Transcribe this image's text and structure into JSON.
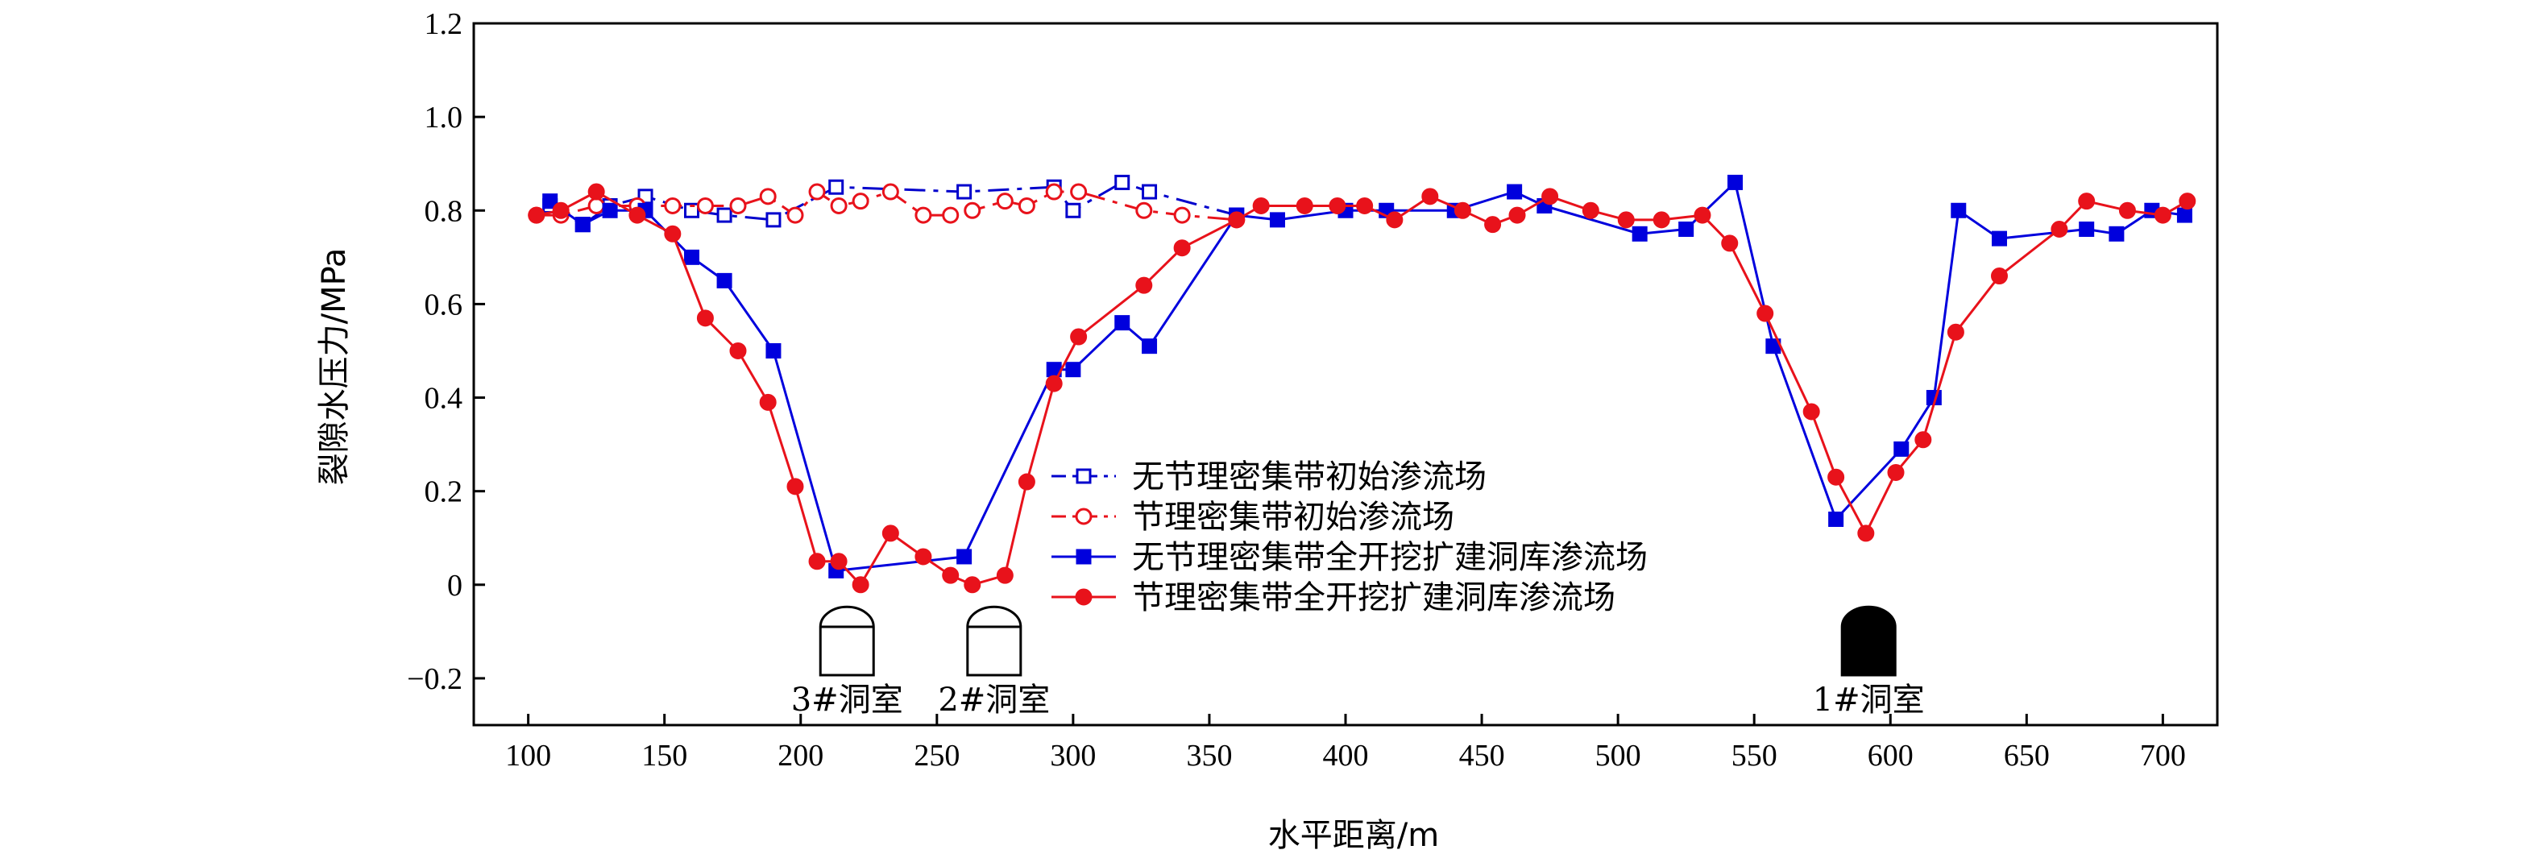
{
  "chart_data": {
    "type": "line",
    "title": "",
    "xlabel": "水平距离/m",
    "ylabel": "裂隙水压力/MPa",
    "xlim": [
      80,
      720
    ],
    "ylim": [
      -0.3,
      1.2
    ],
    "xticks": [
      100,
      150,
      200,
      250,
      300,
      350,
      400,
      450,
      500,
      550,
      600,
      650,
      700
    ],
    "xtick_labels": [
      "100",
      "150",
      "200",
      "250",
      "300",
      "350",
      "400",
      "450",
      "500",
      "550",
      "600",
      "650",
      "700"
    ],
    "yticks": [
      -0.2,
      0,
      0.2,
      0.4,
      0.6,
      0.8,
      1.0,
      1.2
    ],
    "ytick_labels": [
      "−0.2",
      "0",
      "0.2",
      "0.4",
      "0.6",
      "0.8",
      "1.0",
      "1.2"
    ],
    "legend_position": "center",
    "series": [
      {
        "name": "无节理密集带初始渗流场",
        "color": "#0000cc",
        "line_style": "dashdot",
        "marker": "square-open",
        "x": [
          108,
          120,
          130,
          143,
          160,
          172,
          190,
          213,
          260,
          293,
          300,
          318,
          328,
          360
        ],
        "y": [
          0.81,
          0.77,
          0.81,
          0.83,
          0.8,
          0.79,
          0.78,
          0.85,
          0.84,
          0.85,
          0.8,
          0.86,
          0.84,
          0.79
        ]
      },
      {
        "name": "节理密集带初始渗流场",
        "color": "#e8121b",
        "line_style": "dashdot",
        "marker": "circle-open",
        "x": [
          103,
          112,
          125,
          140,
          153,
          165,
          177,
          188,
          198,
          206,
          214,
          222,
          233,
          245,
          255,
          263,
          275,
          283,
          293,
          302,
          326,
          340,
          360
        ],
        "y": [
          0.79,
          0.79,
          0.81,
          0.81,
          0.81,
          0.81,
          0.81,
          0.83,
          0.79,
          0.84,
          0.81,
          0.82,
          0.84,
          0.79,
          0.79,
          0.8,
          0.82,
          0.81,
          0.84,
          0.84,
          0.8,
          0.79,
          0.78
        ]
      },
      {
        "name": "无节理密集带全开挖扩建洞库渗流场",
        "color": "#0000dd",
        "line_style": "solid",
        "marker": "square-filled",
        "x": [
          108,
          120,
          130,
          143,
          160,
          172,
          190,
          213,
          260,
          293,
          300,
          318,
          328,
          360,
          375,
          400,
          415,
          440,
          462,
          473,
          508,
          525,
          543,
          557,
          580,
          604,
          616,
          625,
          640,
          672,
          683,
          696,
          708
        ],
        "y": [
          0.82,
          0.77,
          0.8,
          0.8,
          0.7,
          0.65,
          0.5,
          0.03,
          0.06,
          0.46,
          0.46,
          0.56,
          0.51,
          0.79,
          0.78,
          0.8,
          0.8,
          0.8,
          0.84,
          0.81,
          0.75,
          0.76,
          0.86,
          0.51,
          0.14,
          0.29,
          0.4,
          0.8,
          0.74,
          0.76,
          0.75,
          0.8,
          0.79
        ]
      },
      {
        "name": "节理密集带全开挖扩建洞库渗流场",
        "color": "#e8121b",
        "line_style": "solid",
        "marker": "circle-filled",
        "x": [
          103,
          112,
          125,
          140,
          153,
          165,
          177,
          188,
          198,
          206,
          214,
          222,
          233,
          245,
          255,
          263,
          275,
          283,
          293,
          302,
          326,
          340,
          360,
          369,
          385,
          397,
          407,
          418,
          431,
          443,
          454,
          463,
          475,
          490,
          503,
          516,
          531,
          541,
          554,
          571,
          580,
          591,
          602,
          612,
          624,
          640,
          662,
          672,
          687,
          700,
          709
        ],
        "y": [
          0.79,
          0.8,
          0.84,
          0.79,
          0.75,
          0.57,
          0.5,
          0.39,
          0.21,
          0.05,
          0.05,
          0.0,
          0.11,
          0.06,
          0.02,
          0.0,
          0.02,
          0.22,
          0.43,
          0.53,
          0.64,
          0.72,
          0.78,
          0.81,
          0.81,
          0.81,
          0.81,
          0.78,
          0.83,
          0.8,
          0.77,
          0.79,
          0.83,
          0.8,
          0.78,
          0.78,
          0.79,
          0.73,
          0.58,
          0.37,
          0.23,
          0.11,
          0.24,
          0.31,
          0.54,
          0.66,
          0.76,
          0.82,
          0.8,
          0.79,
          0.82
        ]
      }
    ],
    "annotations": [
      {
        "label": "3#洞室",
        "x": 217,
        "style": "outline"
      },
      {
        "label": "2#洞室",
        "x": 271,
        "style": "outline"
      },
      {
        "label": "1#洞室",
        "x": 592,
        "style": "filled"
      }
    ]
  }
}
